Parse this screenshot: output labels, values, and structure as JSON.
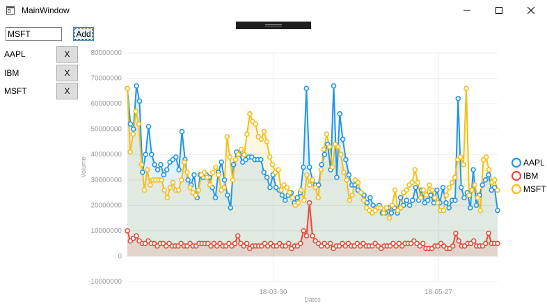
{
  "window": {
    "title": "MainWindow",
    "minimize_symbol": "—",
    "maximize_symbol": "☐",
    "close_symbol": "✕"
  },
  "form": {
    "ticker_value": "MSFT",
    "add_label": "Add"
  },
  "stocks": [
    {
      "symbol": "AAPL",
      "remove_label": "X"
    },
    {
      "symbol": "IBM",
      "remove_label": "X"
    },
    {
      "symbol": "MSFT",
      "remove_label": "X"
    }
  ],
  "colors": {
    "aapl": "#2196e8",
    "ibm": "#e8493a",
    "msft": "#f5be14"
  },
  "chart_data": {
    "type": "area",
    "title": "",
    "xlabel": "Dates",
    "ylabel": "Volume",
    "ylim": [
      -10000000,
      80000000
    ],
    "y_ticks": [
      -10000000,
      0,
      10000000,
      20000000,
      30000000,
      40000000,
      50000000,
      60000000,
      70000000,
      80000000
    ],
    "y_tick_labels": [
      "-10000000",
      "0",
      "10000000",
      "20000000",
      "30000000",
      "40000000",
      "50000000",
      "60000000",
      "70000000",
      "80000000"
    ],
    "x_tick_labels": [
      {
        "label": "18-03-30",
        "index": 37
      },
      {
        "label": "18-05-27",
        "index": 79
      }
    ],
    "legend_position": "right",
    "series": [
      {
        "name": "AAPL",
        "color": "#2196e8",
        "values": [
          66,
          52,
          50,
          67,
          61,
          33,
          40,
          51,
          40,
          36,
          34,
          36,
          32,
          34,
          37,
          38,
          39,
          34,
          49,
          38,
          30,
          28,
          32,
          23,
          32,
          31,
          32,
          31,
          27,
          23,
          33,
          37,
          30,
          24,
          19,
          36,
          41,
          40,
          37,
          38,
          39,
          39,
          38,
          38,
          38,
          33,
          31,
          27,
          32,
          27,
          26,
          24,
          22,
          24,
          25,
          21,
          23,
          25,
          35,
          66,
          35,
          30,
          28,
          28,
          36,
          40,
          44,
          34,
          67,
          31,
          56,
          46,
          38,
          32,
          28,
          28,
          26,
          25,
          24,
          21,
          23,
          20,
          19,
          20,
          17,
          17,
          19,
          17,
          19,
          17,
          23,
          20,
          22,
          20,
          22,
          27,
          22,
          26,
          21,
          22,
          24,
          21,
          26,
          21,
          27,
          21,
          19,
          22,
          22,
          62,
          27,
          23,
          25,
          19,
          34,
          20,
          24,
          28,
          30,
          32,
          26,
          27,
          18
        ]
      },
      {
        "name": "IBM",
        "color": "#e8493a",
        "values": [
          10,
          6,
          7,
          8,
          6,
          5,
          5,
          6,
          5,
          5,
          4,
          5,
          5,
          4,
          5,
          4,
          4,
          4,
          5,
          4,
          4,
          5,
          4,
          4,
          5,
          5,
          5,
          5,
          4,
          5,
          4,
          5,
          4,
          4,
          5,
          4,
          5,
          8,
          5,
          4,
          5,
          3,
          4,
          4,
          4,
          4,
          5,
          4,
          5,
          4,
          4,
          5,
          4,
          4,
          5,
          3,
          4,
          4,
          5,
          10,
          8,
          21,
          8,
          6,
          5,
          4,
          5,
          4,
          5,
          3,
          4,
          4,
          5,
          4,
          5,
          4,
          4,
          5,
          4,
          5,
          4,
          4,
          4,
          5,
          4,
          3,
          4,
          4,
          4,
          5,
          4,
          5,
          4,
          5,
          5,
          5,
          6,
          5,
          4,
          5,
          3,
          3,
          3,
          4,
          4,
          5,
          4,
          3,
          3,
          4,
          9,
          6,
          4,
          4,
          5,
          5,
          6,
          4,
          4,
          4,
          5,
          9,
          5,
          5,
          5
        ]
      },
      {
        "name": "MSFT",
        "color": "#f5be14",
        "values": [
          66,
          41,
          48,
          57,
          52,
          36,
          26,
          34,
          28,
          30,
          30,
          30,
          30,
          26,
          23,
          27,
          29,
          26,
          26,
          30,
          37,
          33,
          27,
          25,
          24,
          26,
          32,
          33,
          31,
          28,
          33,
          35,
          32,
          26,
          27,
          47,
          39,
          30,
          38,
          40,
          42,
          40,
          48,
          56,
          53,
          52,
          47,
          46,
          49,
          45,
          39,
          36,
          33,
          34,
          26,
          28,
          27,
          25,
          23,
          20,
          21,
          26,
          22,
          32,
          28,
          30,
          27,
          23,
          34,
          42,
          48,
          43,
          35,
          44,
          43,
          40,
          33,
          30,
          22,
          24,
          30,
          29,
          25,
          22,
          19,
          18,
          17,
          18,
          19,
          19,
          17,
          19,
          15,
          20,
          26,
          18,
          19,
          25,
          26,
          28,
          29,
          34,
          29,
          23,
          26,
          24,
          28,
          26,
          23,
          21,
          18,
          18,
          24,
          27,
          29,
          31,
          38,
          39,
          36,
          66,
          24,
          26,
          28,
          23,
          18,
          38,
          39,
          34,
          29,
          30,
          26
        ]
      }
    ]
  }
}
